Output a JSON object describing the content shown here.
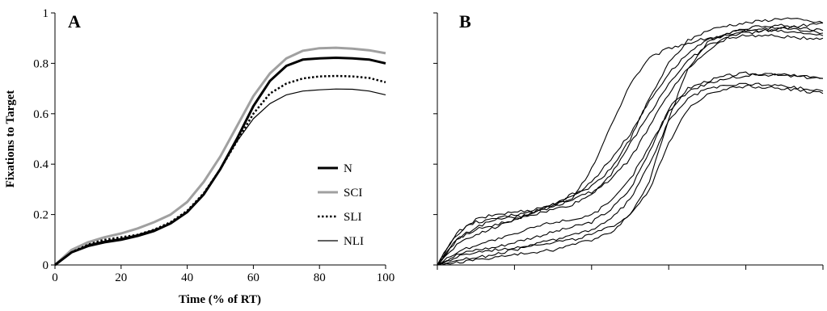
{
  "chart_data": [
    {
      "panel": "A",
      "type": "line",
      "xlabel": "Time (% of RT)",
      "ylabel": "Fixations to Target",
      "xlim": [
        0,
        100
      ],
      "ylim": [
        0,
        1
      ],
      "xticks": [
        "0",
        "20",
        "40",
        "60",
        "80",
        "100"
      ],
      "yticks": [
        "0",
        "0.2",
        "0.4",
        "0.6",
        "0.8",
        "1"
      ],
      "grid": false,
      "legend": "bottom-right",
      "x": [
        0,
        5,
        10,
        15,
        20,
        25,
        30,
        35,
        40,
        45,
        50,
        55,
        60,
        65,
        70,
        75,
        80,
        85,
        90,
        95,
        100
      ],
      "series": [
        {
          "name": "N",
          "style": "thick-black",
          "color": "#000000",
          "values": [
            0,
            0.05,
            0.075,
            0.09,
            0.1,
            0.115,
            0.135,
            0.165,
            0.21,
            0.28,
            0.38,
            0.5,
            0.63,
            0.73,
            0.79,
            0.815,
            0.82,
            0.822,
            0.82,
            0.815,
            0.8
          ]
        },
        {
          "name": "SCI",
          "style": "thick-gray",
          "color": "#a0a0a0",
          "values": [
            0,
            0.06,
            0.09,
            0.11,
            0.125,
            0.145,
            0.17,
            0.2,
            0.25,
            0.33,
            0.43,
            0.55,
            0.67,
            0.76,
            0.82,
            0.85,
            0.86,
            0.862,
            0.858,
            0.852,
            0.84
          ]
        },
        {
          "name": "SLI",
          "style": "dotted",
          "color": "#000000",
          "values": [
            0,
            0.055,
            0.085,
            0.1,
            0.11,
            0.12,
            0.14,
            0.17,
            0.215,
            0.285,
            0.38,
            0.49,
            0.6,
            0.68,
            0.72,
            0.74,
            0.748,
            0.75,
            0.748,
            0.742,
            0.725
          ]
        },
        {
          "name": "NLI",
          "style": "thin-black",
          "color": "#000000",
          "values": [
            0,
            0.05,
            0.08,
            0.095,
            0.105,
            0.12,
            0.14,
            0.165,
            0.21,
            0.28,
            0.38,
            0.49,
            0.58,
            0.64,
            0.675,
            0.69,
            0.695,
            0.698,
            0.697,
            0.69,
            0.675
          ]
        }
      ]
    },
    {
      "panel": "B",
      "type": "line",
      "xlabel": "",
      "ylabel": "",
      "xlim": [
        0,
        100
      ],
      "ylim": [
        0,
        1
      ],
      "grid": false,
      "x": [
        0,
        5,
        10,
        15,
        20,
        25,
        30,
        35,
        40,
        45,
        50,
        55,
        60,
        65,
        70,
        75,
        80,
        85,
        90,
        95,
        100
      ],
      "series": [
        {
          "values": [
            0,
            0.1,
            0.15,
            0.18,
            0.2,
            0.21,
            0.23,
            0.26,
            0.38,
            0.55,
            0.72,
            0.82,
            0.86,
            0.88,
            0.9,
            0.91,
            0.92,
            0.93,
            0.94,
            0.95,
            0.96
          ]
        },
        {
          "values": [
            0,
            0.12,
            0.18,
            0.2,
            0.21,
            0.22,
            0.24,
            0.27,
            0.33,
            0.42,
            0.52,
            0.65,
            0.76,
            0.84,
            0.89,
            0.92,
            0.93,
            0.93,
            0.925,
            0.92,
            0.91
          ]
        },
        {
          "values": [
            0,
            0.1,
            0.14,
            0.16,
            0.18,
            0.21,
            0.24,
            0.28,
            0.31,
            0.38,
            0.5,
            0.66,
            0.8,
            0.89,
            0.93,
            0.95,
            0.96,
            0.97,
            0.98,
            0.97,
            0.96
          ]
        },
        {
          "values": [
            0,
            0.13,
            0.17,
            0.18,
            0.19,
            0.2,
            0.22,
            0.24,
            0.28,
            0.36,
            0.48,
            0.6,
            0.72,
            0.81,
            0.87,
            0.9,
            0.91,
            0.91,
            0.905,
            0.9,
            0.9
          ]
        },
        {
          "values": [
            0,
            0.08,
            0.12,
            0.15,
            0.18,
            0.21,
            0.24,
            0.26,
            0.29,
            0.34,
            0.42,
            0.55,
            0.68,
            0.78,
            0.85,
            0.9,
            0.93,
            0.94,
            0.94,
            0.93,
            0.92
          ]
        },
        {
          "values": [
            0,
            0.05,
            0.08,
            0.1,
            0.12,
            0.15,
            0.17,
            0.18,
            0.2,
            0.25,
            0.34,
            0.47,
            0.61,
            0.69,
            0.72,
            0.74,
            0.75,
            0.76,
            0.755,
            0.75,
            0.74
          ]
        },
        {
          "values": [
            0,
            0.04,
            0.06,
            0.07,
            0.09,
            0.11,
            0.13,
            0.15,
            0.17,
            0.22,
            0.3,
            0.45,
            0.62,
            0.7,
            0.73,
            0.75,
            0.76,
            0.755,
            0.75,
            0.745,
            0.74
          ]
        },
        {
          "values": [
            0,
            0.02,
            0.03,
            0.04,
            0.06,
            0.08,
            0.1,
            0.12,
            0.14,
            0.18,
            0.26,
            0.4,
            0.57,
            0.66,
            0.7,
            0.71,
            0.72,
            0.715,
            0.71,
            0.7,
            0.69
          ]
        },
        {
          "values": [
            0,
            0.01,
            0.02,
            0.03,
            0.04,
            0.05,
            0.06,
            0.08,
            0.1,
            0.13,
            0.2,
            0.33,
            0.58,
            0.78,
            0.88,
            0.92,
            0.94,
            0.95,
            0.95,
            0.94,
            0.93
          ]
        },
        {
          "values": [
            0,
            0.03,
            0.05,
            0.06,
            0.07,
            0.08,
            0.09,
            0.1,
            0.12,
            0.15,
            0.2,
            0.3,
            0.48,
            0.62,
            0.68,
            0.7,
            0.71,
            0.705,
            0.7,
            0.69,
            0.68
          ]
        }
      ]
    }
  ]
}
